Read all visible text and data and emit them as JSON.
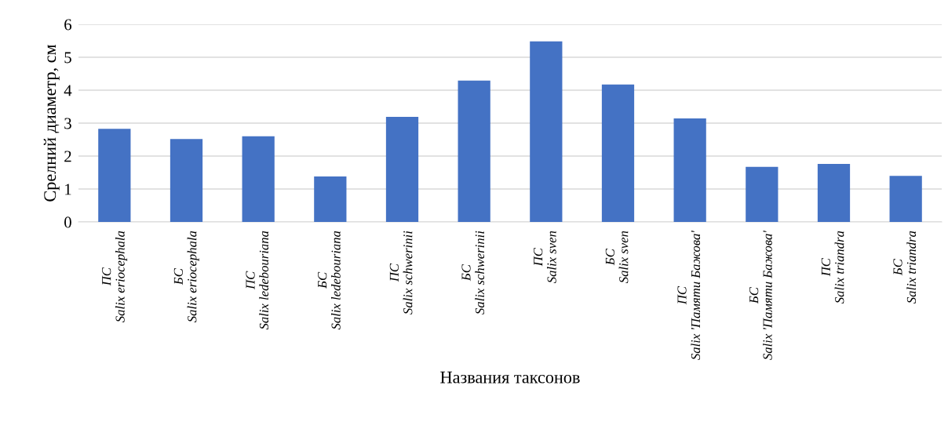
{
  "chart_data": {
    "type": "bar",
    "xlabel": "Названия таксонов",
    "ylabel": "Срелний диаметр, см",
    "categories": [
      "ПС\nSalix eriocephala",
      "БС\nSalix eriocephala",
      "ПС\nSalix ledebouriana",
      "БС\nSalix ledebouriana",
      "ПС\nSalix schwerinii",
      "БС\nSalix schwerinii",
      "ПС\nSalix sven",
      "БС\nSalix sven",
      "ПС\nSalix 'Памяти Бажова'",
      "БС\nSalix 'Памяти Бажова'",
      "ПС\nSalix triandra",
      "БС\nSalix triandra"
    ],
    "values": [
      2.83,
      2.52,
      2.6,
      1.38,
      3.19,
      4.29,
      5.48,
      4.17,
      3.14,
      1.67,
      1.76,
      1.4
    ],
    "color": "#4472c4",
    "ylim": [
      0,
      6
    ],
    "yticks": [
      0,
      1,
      2,
      3,
      4,
      5,
      6
    ],
    "grid": "y",
    "legend": false
  }
}
